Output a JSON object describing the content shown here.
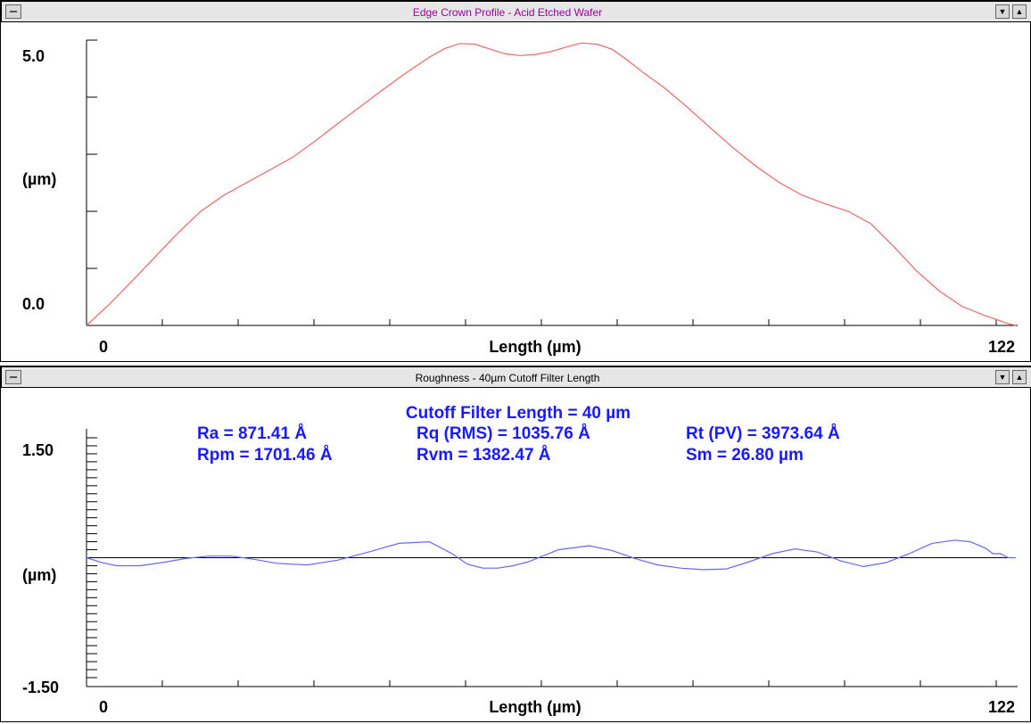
{
  "colors": {
    "profile_line": "#ee6666",
    "roughness_line": "#6666ff",
    "title1": "#990099",
    "stats_text": "#1a1aff",
    "baseline": "#000000"
  },
  "icons": {
    "system_menu": "system-menu-icon",
    "minimize": "minimize-arrow-icon",
    "maximize": "maximize-arrow-icon"
  },
  "window1": {
    "title": "Edge Crown Profile - Acid Etched Wafer",
    "buttons": {
      "minimize": "▼",
      "maximize": "▲"
    }
  },
  "window2": {
    "title": "Roughness - 40µm Cutoff Filter Length",
    "buttons": {
      "minimize": "▼",
      "maximize": "▲"
    },
    "stats": {
      "header": "Cutoff Filter Length = 40 µm",
      "ra": "Ra = 871.41 Å",
      "rq": "Rq (RMS) = 1035.76 Å",
      "rt": "Rt (PV) = 3973.64 Å",
      "rpm": "Rpm = 1701.46 Å",
      "rvm": "Rvm = 1382.47 Å",
      "sm": "Sm = 26.80 µm"
    }
  },
  "chart_data": [
    {
      "type": "line",
      "title": "Edge Crown Profile - Acid Etched Wafer",
      "xlabel": "Length (µm)",
      "ylabel": "(µm)",
      "xlim": [
        0,
        122
      ],
      "ylim": [
        0.0,
        5.0
      ],
      "x_tick_labels": [
        "0",
        "122"
      ],
      "y_tick_labels": [
        "0.0",
        "5.0"
      ],
      "series": [
        {
          "x": [
            0,
            3,
            6,
            9,
            12,
            15,
            18,
            21,
            24,
            27,
            30,
            33,
            36,
            39,
            42,
            45,
            47,
            49,
            51,
            53,
            55,
            57,
            59,
            61,
            63,
            65,
            67,
            69,
            71,
            73,
            76,
            79,
            82,
            85,
            88,
            91,
            94,
            97,
            100,
            103,
            106,
            109,
            112,
            115,
            118,
            120,
            121,
            122
          ],
          "y": [
            0.0,
            0.37,
            0.78,
            1.2,
            1.62,
            2.0,
            2.28,
            2.5,
            2.72,
            2.94,
            3.23,
            3.54,
            3.84,
            4.14,
            4.43,
            4.7,
            4.85,
            4.94,
            4.93,
            4.84,
            4.76,
            4.73,
            4.75,
            4.8,
            4.88,
            4.95,
            4.93,
            4.84,
            4.65,
            4.44,
            4.15,
            3.81,
            3.45,
            3.1,
            2.78,
            2.5,
            2.28,
            2.13,
            2.0,
            1.78,
            1.38,
            0.95,
            0.6,
            0.33,
            0.17,
            0.08,
            0.03,
            0.0
          ]
        }
      ]
    },
    {
      "type": "line",
      "title": "Roughness - 40µm Cutoff Filter Length",
      "xlabel": "Length (µm)",
      "ylabel": "(µm)",
      "xlim": [
        0,
        122
      ],
      "ylim": [
        -1.5,
        1.5
      ],
      "x_tick_labels": [
        "0",
        "122"
      ],
      "y_tick_labels": [
        "1.50",
        "-1.50"
      ],
      "baseline": 0,
      "series": [
        {
          "x": [
            0,
            2,
            4,
            7,
            10,
            13,
            16,
            19,
            22,
            25,
            29,
            33,
            37,
            41,
            45,
            48,
            50,
            52,
            54,
            56,
            58,
            62,
            66,
            69,
            72,
            75,
            78,
            81,
            84,
            87,
            90,
            93,
            96,
            99,
            102,
            105,
            108,
            111,
            114,
            116,
            118,
            119,
            120,
            121,
            122
          ],
          "y": [
            0.0,
            -0.06,
            -0.1,
            -0.1,
            -0.06,
            -0.01,
            0.02,
            0.02,
            -0.02,
            -0.07,
            -0.09,
            -0.03,
            0.07,
            0.18,
            0.2,
            0.05,
            -0.08,
            -0.13,
            -0.13,
            -0.1,
            -0.05,
            0.1,
            0.15,
            0.09,
            -0.01,
            -0.09,
            -0.13,
            -0.15,
            -0.14,
            -0.05,
            0.05,
            0.11,
            0.07,
            -0.04,
            -0.11,
            -0.06,
            0.05,
            0.18,
            0.22,
            0.2,
            0.12,
            0.05,
            0.05,
            0.0,
            0.0
          ]
        }
      ]
    }
  ]
}
